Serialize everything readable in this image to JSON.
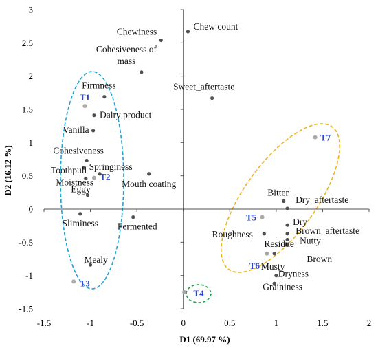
{
  "chart_data": {
    "type": "scatter",
    "title": "",
    "xlabel": "D1 (69.97 %)",
    "ylabel": "D2 (16.12 %)",
    "xlim": [
      -1.5,
      2
    ],
    "ylim": [
      -1.5,
      3
    ],
    "xticks": [
      "-1.5",
      "-1",
      "-0.5",
      "0",
      "0.5",
      "1",
      "1.5",
      "2"
    ],
    "yticks": [
      "-1.5",
      "-1",
      "-0.5",
      "0",
      "0.5",
      "1",
      "1.5",
      "2",
      "2.5",
      "3"
    ],
    "grid": false,
    "colors": {
      "attribute_point": "#505050",
      "treatment_point": "#a9a9a9",
      "treatment_label": "#2b47c9",
      "group_left": "#1aa3d9",
      "group_right": "#f2b31a",
      "group_t4": "#22a34a"
    },
    "series": [
      {
        "points": [
          {
            "label": "Chew count",
            "x": 0.05,
            "y": 2.67
          },
          {
            "label": "Chewiness",
            "x": -0.24,
            "y": 2.54
          },
          {
            "label": "Cohesiveness of mass",
            "x": -0.45,
            "y": 2.06
          },
          {
            "label": "Sweet_aftertaste",
            "x": 0.31,
            "y": 1.67
          },
          {
            "label": "Firmness",
            "x": -0.85,
            "y": 1.69
          },
          {
            "label": "Dairy product",
            "x": -0.96,
            "y": 1.41
          },
          {
            "label": "Vanilla",
            "x": -0.97,
            "y": 1.18
          },
          {
            "label": "Cohesiveness",
            "x": -1.04,
            "y": 0.73
          },
          {
            "label": "Toothpull",
            "x": -1.07,
            "y": 0.62
          },
          {
            "label": "Springiness",
            "x": -0.9,
            "y": 0.53
          },
          {
            "label": "Mouth coating",
            "x": -0.37,
            "y": 0.53
          },
          {
            "label": "Moistness",
            "x": -1.05,
            "y": 0.46
          },
          {
            "label": "Eggy",
            "x": -1.03,
            "y": 0.21
          },
          {
            "label": "Sliminess",
            "x": -1.11,
            "y": -0.07
          },
          {
            "label": "Fermented",
            "x": -0.54,
            "y": -0.12
          },
          {
            "label": "Mealy",
            "x": -1.0,
            "y": -0.84
          },
          {
            "label": "Bitter",
            "x": 1.08,
            "y": 0.12
          },
          {
            "label": "Dry_aftertaste",
            "x": 1.12,
            "y": 0.01
          },
          {
            "label": "Dry",
            "x": 1.12,
            "y": -0.24
          },
          {
            "label": "Roughness",
            "x": 0.87,
            "y": -0.37
          },
          {
            "label": "Brown_aftertaste",
            "x": 1.12,
            "y": -0.37
          },
          {
            "label": "Nutty",
            "x": 1.12,
            "y": -0.46
          },
          {
            "label": "Residue",
            "x": 1.12,
            "y": -0.53
          },
          {
            "label": "Brown",
            "x": 1.1,
            "y": -0.53
          },
          {
            "label": "Musty",
            "x": 0.98,
            "y": -0.67
          },
          {
            "label": "Dryness",
            "x": 1.0,
            "y": -1.0
          },
          {
            "label": "Graininess",
            "x": 0.98,
            "y": -1.12
          }
        ]
      },
      {
        "points": [
          {
            "label": "T1",
            "x": -1.06,
            "y": 1.55
          },
          {
            "label": "T2",
            "x": -0.96,
            "y": 0.47
          },
          {
            "label": "T3",
            "x": -1.18,
            "y": -1.09
          },
          {
            "label": "T4",
            "x": 0.01,
            "y": -1.25
          },
          {
            "label": "T5",
            "x": 0.85,
            "y": -0.12
          },
          {
            "label": "T6",
            "x": 0.9,
            "y": -0.67
          },
          {
            "label": "T7",
            "x": 1.42,
            "y": 1.08
          }
        ]
      }
    ]
  }
}
